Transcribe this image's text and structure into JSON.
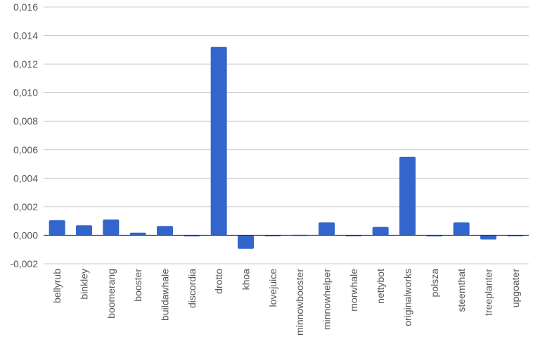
{
  "chart_data": {
    "type": "bar",
    "categories": [
      "bellyrub",
      "binkley",
      "boomerang",
      "booster",
      "buildawhale",
      "discordia",
      "drotto",
      "khoa",
      "lovejuice",
      "minnowbooster",
      "minnowhelper",
      "morwhale",
      "nettybot",
      "originalworks",
      "polsza",
      "steemthat",
      "treeplanter",
      "upgoater"
    ],
    "values": [
      0.00105,
      0.0007,
      0.0011,
      0.00018,
      0.00065,
      -8e-05,
      0.0132,
      -0.00095,
      0.0,
      3e-05,
      0.0009,
      0.0,
      0.00058,
      0.0055,
      -8e-05,
      0.0009,
      -0.0003,
      -7e-05
    ],
    "yticks": [
      "-0,002",
      "0,000",
      "0,002",
      "0,004",
      "0,006",
      "0,008",
      "0,010",
      "0,012",
      "0,014",
      "0,016"
    ],
    "ytick_values": [
      -0.002,
      0.0,
      0.002,
      0.004,
      0.006,
      0.008,
      0.01,
      0.012,
      0.014,
      0.016
    ],
    "ylim": [
      -0.002,
      0.016
    ],
    "grid": true,
    "bar_color": "#3366cc",
    "title": "",
    "xlabel": "",
    "ylabel": ""
  }
}
